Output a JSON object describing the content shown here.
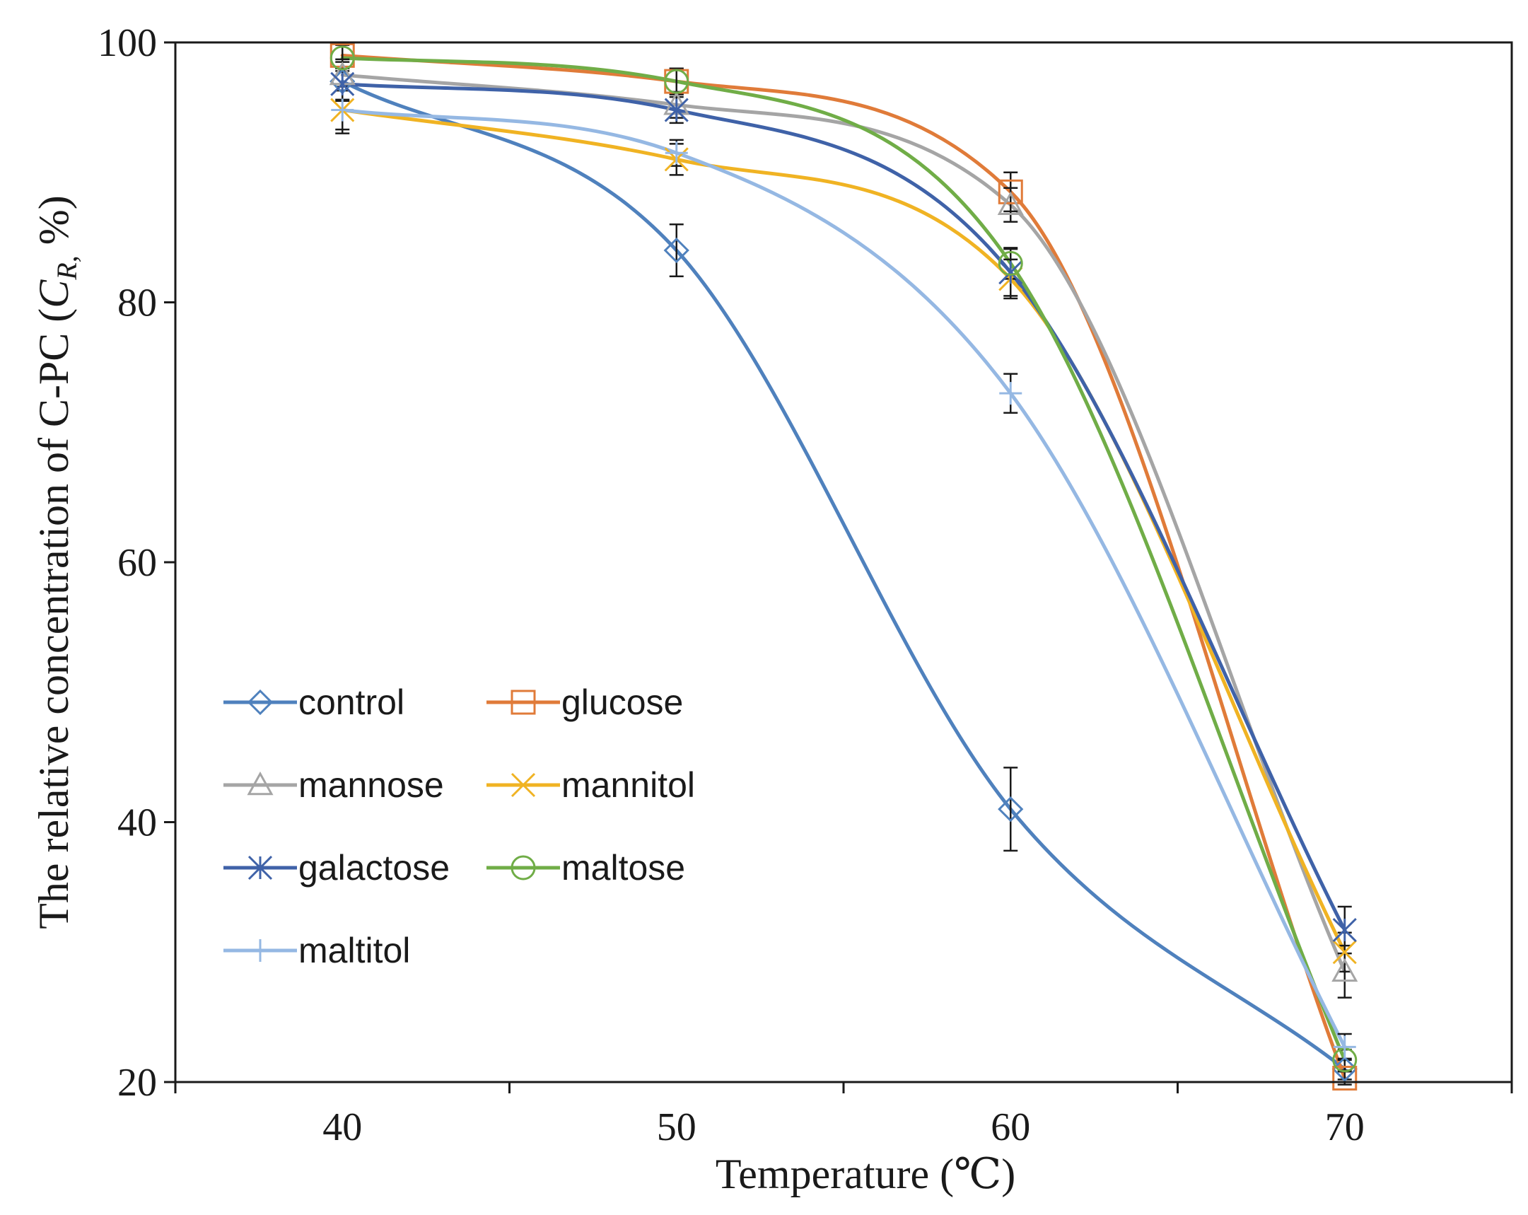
{
  "chart_data": {
    "type": "line",
    "title": "",
    "xlabel": "Temperature (℃)",
    "ylabel_prefix": "The relative concentration of C-PC (",
    "ylabel_italic": "C",
    "ylabel_sub": "R,",
    "ylabel_suffix": " %)",
    "x": [
      40,
      50,
      60,
      70
    ],
    "x_tick_labels": [
      "40",
      "50",
      "60",
      "70"
    ],
    "xlim": [
      35,
      75
    ],
    "ylim": [
      20,
      100
    ],
    "y_ticks": [
      20,
      40,
      60,
      80,
      100
    ],
    "y_tick_labels": [
      "20",
      "40",
      "60",
      "80",
      "100"
    ],
    "grid": false,
    "legend_position": "lower-left",
    "series": [
      {
        "name": "control",
        "marker": "diamond",
        "color": "#4f81bd",
        "values": [
          97.0,
          84.0,
          41.0,
          21.0
        ],
        "errors": [
          1.5,
          2.0,
          3.2,
          0.8
        ]
      },
      {
        "name": "glucose",
        "marker": "square",
        "color": "#e07b39",
        "values": [
          99.0,
          97.0,
          88.5,
          20.3
        ],
        "errors": [
          1.0,
          1.0,
          1.5,
          0.5
        ]
      },
      {
        "name": "mannose",
        "marker": "triangle",
        "color": "#a5a5a5",
        "values": [
          97.5,
          95.2,
          87.5,
          28.5
        ],
        "errors": [
          1.2,
          1.0,
          1.3,
          2.0
        ]
      },
      {
        "name": "mannitol",
        "marker": "x",
        "color": "#f0b323",
        "values": [
          94.8,
          91.0,
          81.8,
          30.0
        ],
        "errors": [
          1.8,
          1.2,
          1.5,
          1.5
        ]
      },
      {
        "name": "galactose",
        "marker": "asterisk",
        "color": "#3f62a8",
        "values": [
          96.8,
          94.8,
          82.3,
          31.7
        ],
        "errors": [
          1.2,
          1.0,
          1.8,
          1.8
        ]
      },
      {
        "name": "maltose",
        "marker": "circle",
        "color": "#70ad47",
        "values": [
          98.8,
          97.0,
          83.0,
          21.7
        ],
        "errors": [
          1.0,
          1.0,
          1.2,
          0.8
        ]
      },
      {
        "name": "maltitol",
        "marker": "plus",
        "color": "#95b8e3",
        "values": [
          94.8,
          91.5,
          73.0,
          22.7
        ],
        "errors": [
          1.5,
          1.0,
          1.5,
          1.0
        ]
      }
    ]
  }
}
